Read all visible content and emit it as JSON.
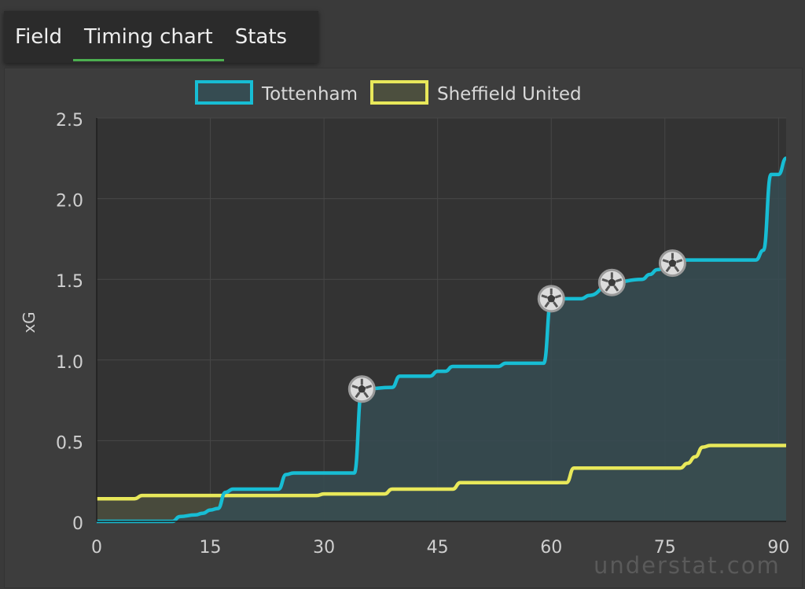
{
  "tabs": [
    {
      "label": "Field"
    },
    {
      "label": "Timing chart"
    },
    {
      "label": "Stats"
    }
  ],
  "watermark": "understat.com",
  "chart_data": {
    "type": "area",
    "xlabel": "",
    "ylabel": "xG",
    "xlim": [
      0,
      91
    ],
    "ylim": [
      0,
      2.5
    ],
    "xticks": [
      0,
      15,
      30,
      45,
      60,
      75,
      90
    ],
    "yticks": [
      0,
      0.5,
      1.0,
      1.5,
      2.0,
      2.5
    ],
    "ytick_labels": [
      "0",
      "0.5",
      "1.0",
      "1.5",
      "2.0",
      "2.5"
    ],
    "grid": true,
    "legend_position": "top-center",
    "series": [
      {
        "name": "Tottenham",
        "color": "#17bdd4",
        "fill": "#364c52",
        "points": [
          [
            0,
            0
          ],
          [
            10,
            0
          ],
          [
            11,
            0.03
          ],
          [
            13,
            0.04
          ],
          [
            14,
            0.05
          ],
          [
            15,
            0.07
          ],
          [
            16,
            0.08
          ],
          [
            17,
            0.18
          ],
          [
            18,
            0.2
          ],
          [
            24,
            0.2
          ],
          [
            25,
            0.29
          ],
          [
            26,
            0.3
          ],
          [
            34,
            0.3
          ],
          [
            35,
            0.82
          ],
          [
            39,
            0.83
          ],
          [
            40,
            0.9
          ],
          [
            44,
            0.9
          ],
          [
            45,
            0.93
          ],
          [
            46,
            0.93
          ],
          [
            47,
            0.96
          ],
          [
            53,
            0.96
          ],
          [
            54,
            0.98
          ],
          [
            59,
            0.98
          ],
          [
            60,
            1.38
          ],
          [
            64,
            1.38
          ],
          [
            65,
            1.4
          ],
          [
            68,
            1.48
          ],
          [
            72,
            1.5
          ],
          [
            73,
            1.53
          ],
          [
            74,
            1.56
          ],
          [
            76,
            1.6
          ],
          [
            77,
            1.62
          ],
          [
            87,
            1.62
          ],
          [
            88,
            1.68
          ],
          [
            89,
            2.15
          ],
          [
            90,
            2.15
          ],
          [
            91,
            2.25
          ]
        ],
        "goals": [
          35,
          60,
          68,
          76
        ]
      },
      {
        "name": "Sheffield United",
        "color": "#e8e85a",
        "fill": "#4c4f3e",
        "points": [
          [
            0,
            0.14
          ],
          [
            5,
            0.14
          ],
          [
            6,
            0.16
          ],
          [
            29,
            0.16
          ],
          [
            30,
            0.17
          ],
          [
            38,
            0.17
          ],
          [
            39,
            0.2
          ],
          [
            47,
            0.2
          ],
          [
            48,
            0.24
          ],
          [
            62,
            0.24
          ],
          [
            63,
            0.33
          ],
          [
            77,
            0.33
          ],
          [
            78,
            0.36
          ],
          [
            79,
            0.4
          ],
          [
            80,
            0.46
          ],
          [
            81,
            0.47
          ],
          [
            91,
            0.47
          ]
        ]
      }
    ]
  }
}
